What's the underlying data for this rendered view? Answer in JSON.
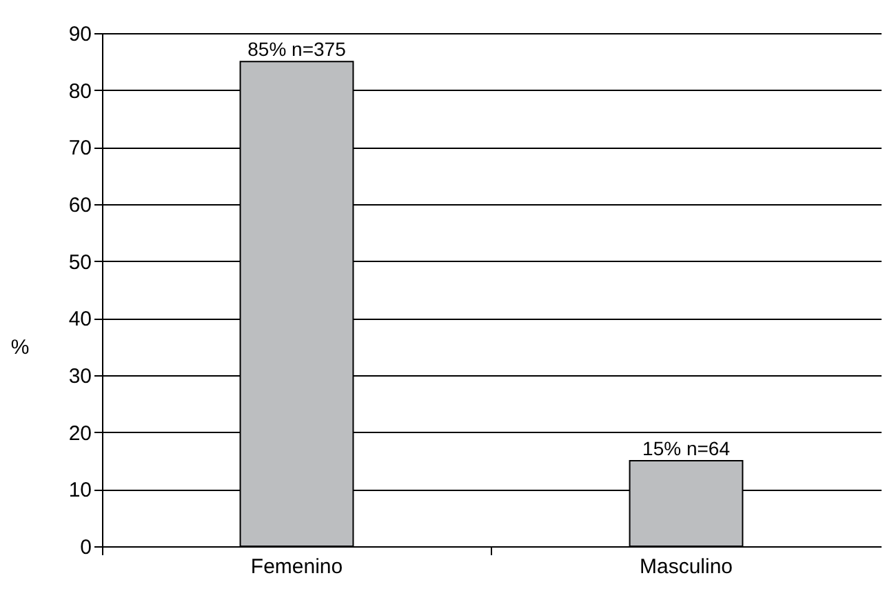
{
  "chart_data": {
    "type": "bar",
    "ylabel": "%",
    "categories": [
      "Femenino",
      "Masculino"
    ],
    "values": [
      85,
      15
    ],
    "color": "#bcbec0",
    "value_labels": [
      "85% n=375",
      "15% n=64"
    ],
    "ylim": [
      0,
      90
    ],
    "yticks": [
      0,
      10,
      20,
      30,
      40,
      50,
      60,
      70,
      80,
      90
    ],
    "grid": "y"
  }
}
